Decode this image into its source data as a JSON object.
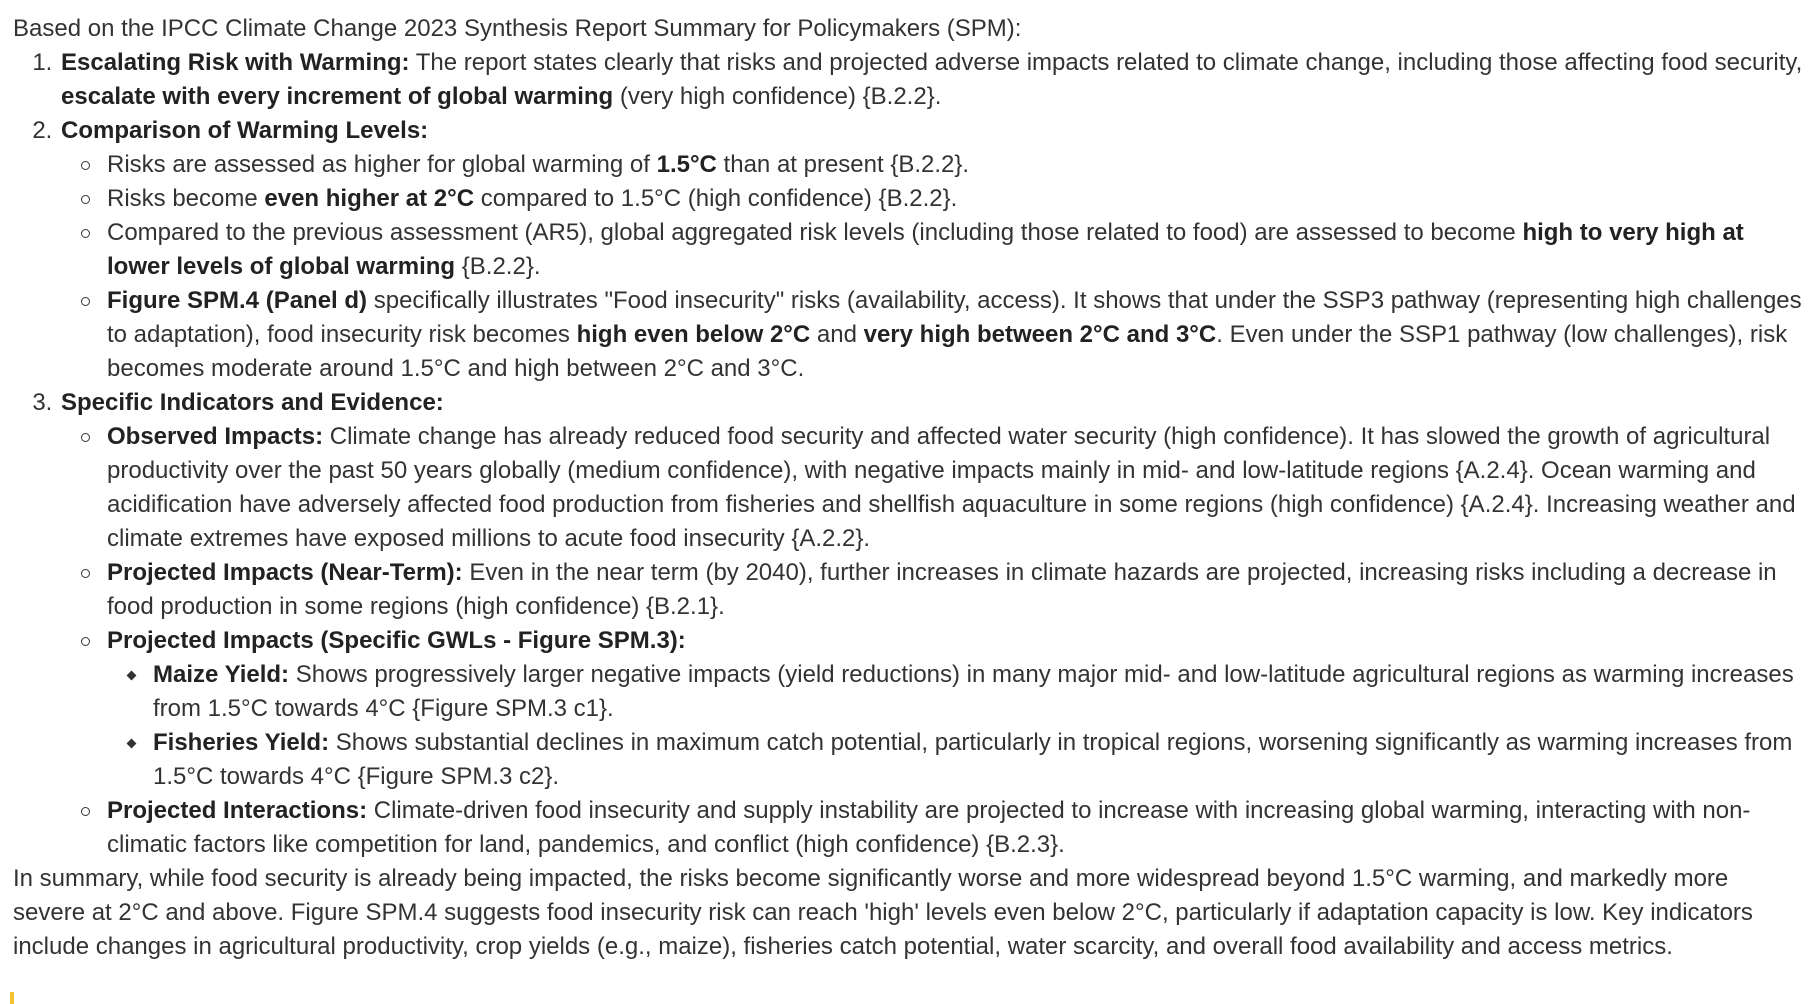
{
  "intro": "Based on the IPCC Climate Change 2023 Synthesis Report Summary for Policymakers (SPM):",
  "item1": {
    "title": "Escalating Risk with Warming:",
    "text_a": " The report states clearly that risks and projected adverse impacts related to climate change, including those affecting food security, ",
    "bold_b": "escalate with every increment of global warming",
    "text_c": " (very high confidence) {B.2.2}."
  },
  "item2": {
    "title": "Comparison of Warming Levels:",
    "b1": {
      "text_a": "Risks are assessed as higher for global warming of ",
      "bold_b": "1.5°C",
      "text_c": " than at present {B.2.2}."
    },
    "b2": {
      "text_a": "Risks become ",
      "bold_b": "even higher at 2°C",
      "text_c": " compared to 1.5°C (high confidence) {B.2.2}."
    },
    "b3": {
      "text_a": "Compared to the previous assessment (AR5), global aggregated risk levels (including those related to food) are assessed to become ",
      "bold_b": "high to very high at lower levels of global warming",
      "text_c": " {B.2.2}."
    },
    "b4": {
      "bold_a": "Figure SPM.4 (Panel d)",
      "text_b": " specifically illustrates \"Food insecurity\" risks (availability, access). It shows that under the SSP3 pathway (representing high challenges to adaptation), food insecurity risk becomes ",
      "bold_c": "high even below 2°C",
      "text_d": " and ",
      "bold_e": "very high between 2°C and 3°C",
      "text_f": ". Even under the SSP1 pathway (low challenges), risk becomes moderate around 1.5°C and high between 2°C and 3°C."
    }
  },
  "item3": {
    "title": "Specific Indicators and Evidence:",
    "b1": {
      "title": "Observed Impacts:",
      "text": " Climate change has already reduced food security and affected water security (high confidence). It has slowed the growth of agricultural productivity over the past 50 years globally (medium confidence), with negative impacts mainly in mid- and low-latitude regions {A.2.4}. Ocean warming and acidification have adversely affected food production from fisheries and shellfish aquaculture in some regions (high confidence) {A.2.4}. Increasing weather and climate extremes have exposed millions to acute food insecurity {A.2.2}."
    },
    "b2": {
      "title": "Projected Impacts (Near-Term):",
      "text": " Even in the near term (by 2040), further increases in climate hazards are projected, increasing risks including a decrease in food production in some regions (high confidence) {B.2.1}."
    },
    "b3": {
      "title": "Projected Impacts (Specific GWLs - Figure SPM.3):",
      "s1": {
        "title": "Maize Yield:",
        "text": " Shows progressively larger negative impacts (yield reductions) in many major mid- and low-latitude agricultural regions as warming increases from 1.5°C towards 4°C {Figure SPM.3 c1}."
      },
      "s2": {
        "title": "Fisheries Yield:",
        "text": " Shows substantial declines in maximum catch potential, particularly in tropical regions, worsening significantly as warming increases from 1.5°C towards 4°C {Figure SPM.3 c2}."
      }
    },
    "b4": {
      "title": "Projected Interactions:",
      "text": " Climate-driven food insecurity and supply instability are projected to increase with increasing global warming, interacting with non-climatic factors like competition for land, pandemics, and conflict (high confidence) {B.2.3}."
    }
  },
  "summary": "In summary, while food security is already being impacted, the risks become significantly worse and more widespread beyond 1.5°C warming, and markedly more severe at 2°C and above. Figure SPM.4 suggests food insecurity risk can reach 'high' levels even below 2°C, particularly if adaptation capacity is low. Key indicators include changes in agricultural productivity, crop yields (e.g., maize), fisheries catch potential, water scarcity, and overall food availability and access metrics."
}
